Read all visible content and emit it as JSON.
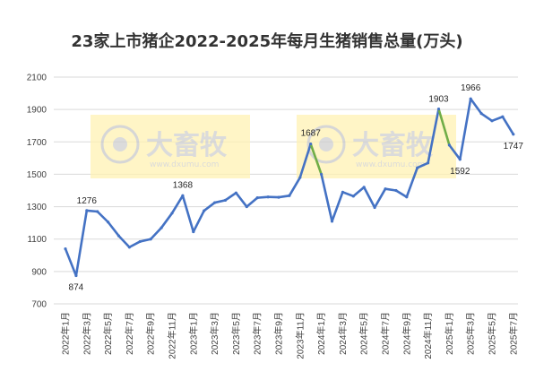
{
  "chart_data": {
    "type": "line",
    "title": "23家上市猪企2022-2025年每月生猪销售总量(万头)",
    "xlabel": "",
    "ylabel": "",
    "ylim": [
      700,
      2100
    ],
    "yticks": [
      700,
      900,
      1100,
      1300,
      1500,
      1700,
      1900,
      2100
    ],
    "grid": "horizontal",
    "legend": "none",
    "x": [
      "2022年1月",
      "2022年2月",
      "2022年3月",
      "2022年4月",
      "2022年5月",
      "2022年6月",
      "2022年7月",
      "2022年8月",
      "2022年9月",
      "2022年10月",
      "2022年11月",
      "2022年12月",
      "2023年1月",
      "2023年2月",
      "2023年3月",
      "2023年4月",
      "2023年5月",
      "2023年6月",
      "2023年7月",
      "2023年8月",
      "2023年9月",
      "2023年10月",
      "2023年11月",
      "2023年12月",
      "2024年1月",
      "2024年2月",
      "2024年3月",
      "2024年4月",
      "2024年5月",
      "2024年6月",
      "2024年7月",
      "2024年8月",
      "2024年9月",
      "2024年10月",
      "2024年11月",
      "2024年12月",
      "2025年1月",
      "2025年2月",
      "2025年3月",
      "2025年4月",
      "2025年5月",
      "2025年6月",
      "2025年7月"
    ],
    "x_tick_labels": [
      "2022年1月",
      "2022年3月",
      "2022年5月",
      "2022年7月",
      "2022年9月",
      "2022年11月",
      "2023年1月",
      "2023年3月",
      "2023年5月",
      "2023年7月",
      "2023年9月",
      "2023年11月",
      "2024年1月",
      "2024年3月",
      "2024年5月",
      "2024年7月",
      "2024年9月",
      "2024年11月",
      "2025年1月",
      "2025年3月",
      "2025年5月",
      "2025年7月"
    ],
    "values": [
      1040,
      874,
      1276,
      1270,
      1205,
      1120,
      1050,
      1085,
      1100,
      1170,
      1260,
      1368,
      1145,
      1275,
      1325,
      1340,
      1385,
      1300,
      1355,
      1360,
      1358,
      1368,
      1480,
      1687,
      1500,
      1210,
      1390,
      1365,
      1420,
      1295,
      1410,
      1400,
      1360,
      1540,
      1570,
      1903,
      1680,
      1592,
      1966,
      1875,
      1830,
      1855,
      1747
    ],
    "data_labels": [
      {
        "index": 1,
        "text": "874"
      },
      {
        "index": 2,
        "text": "1276"
      },
      {
        "index": 11,
        "text": "1368"
      },
      {
        "index": 23,
        "text": "1687"
      },
      {
        "index": 35,
        "text": "1903"
      },
      {
        "index": 37,
        "text": "1592"
      },
      {
        "index": 38,
        "text": "1966"
      },
      {
        "index": 42,
        "text": "1747"
      }
    ],
    "highlight_segments": [
      [
        23,
        24
      ],
      [
        35,
        36
      ]
    ],
    "colors": {
      "line": "#4472c4",
      "highlight": "#70ad47",
      "grid": "#d9d9d9",
      "watermark_box": "#fff2b3"
    }
  },
  "watermark": {
    "brand": "大畜牧",
    "url": "www.dxumu.com"
  }
}
